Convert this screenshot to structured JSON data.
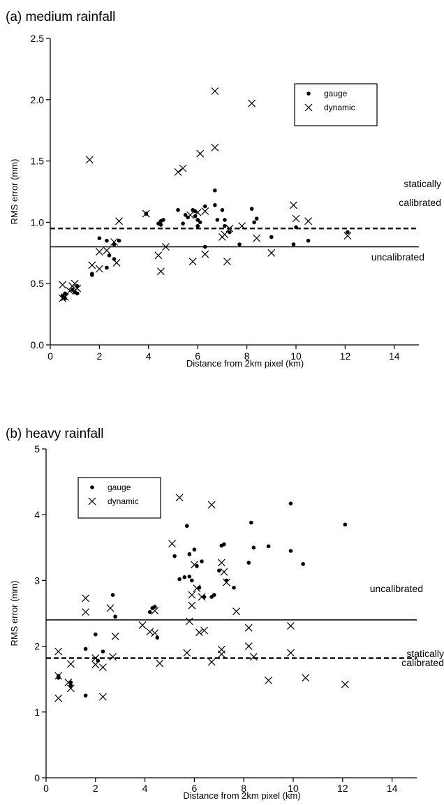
{
  "chart_data": [
    {
      "type": "scatter",
      "title": "(a) medium rainfall",
      "xlabel": "Distance from 2km pixel (km)",
      "ylabel": "RMS error (mm)",
      "xlim": [
        0,
        15
      ],
      "ylim": [
        0.0,
        2.5
      ],
      "xticks": [
        "0",
        "2",
        "4",
        "6",
        "8",
        "10",
        "12",
        "14"
      ],
      "yticks": [
        "0.0",
        "0.5",
        "1.0",
        "1.5",
        "2.0",
        "2.5"
      ],
      "grid": false,
      "legend_position": "top-right",
      "series": [
        {
          "name": "gauge",
          "marker": "dot",
          "points": [
            [
              0.5,
              0.4
            ],
            [
              0.6,
              0.38
            ],
            [
              0.6,
              0.42
            ],
            [
              0.9,
              0.45
            ],
            [
              1.0,
              0.43
            ],
            [
              1.1,
              0.48
            ],
            [
              1.1,
              0.42
            ],
            [
              1.7,
              0.58
            ],
            [
              1.7,
              0.57
            ],
            [
              2.0,
              0.87
            ],
            [
              2.3,
              0.85
            ],
            [
              2.3,
              0.63
            ],
            [
              2.4,
              0.73
            ],
            [
              2.6,
              0.7
            ],
            [
              2.6,
              0.82
            ],
            [
              2.8,
              0.85
            ],
            [
              3.9,
              1.07
            ],
            [
              4.4,
              0.99
            ],
            [
              4.5,
              0.98
            ],
            [
              4.5,
              1.01
            ],
            [
              4.6,
              1.02
            ],
            [
              5.2,
              1.1
            ],
            [
              5.4,
              0.99
            ],
            [
              5.5,
              1.06
            ],
            [
              5.6,
              1.04
            ],
            [
              5.8,
              1.1
            ],
            [
              5.9,
              1.05
            ],
            [
              5.9,
              1.09
            ],
            [
              6.0,
              1.02
            ],
            [
              6.1,
              1.0
            ],
            [
              6.0,
              0.97
            ],
            [
              6.3,
              1.13
            ],
            [
              6.3,
              0.8
            ],
            [
              6.7,
              1.26
            ],
            [
              6.7,
              1.14
            ],
            [
              6.8,
              1.02
            ],
            [
              7.0,
              1.1
            ],
            [
              7.1,
              1.02
            ],
            [
              7.1,
              0.97
            ],
            [
              7.3,
              0.92
            ],
            [
              7.7,
              0.82
            ],
            [
              8.2,
              1.11
            ],
            [
              8.3,
              1.0
            ],
            [
              8.4,
              1.03
            ],
            [
              9.0,
              0.88
            ],
            [
              9.9,
              0.82
            ],
            [
              10.0,
              0.96
            ],
            [
              10.5,
              0.85
            ],
            [
              12.1,
              0.92
            ]
          ]
        },
        {
          "name": "dynamic",
          "marker": "x",
          "points": [
            [
              0.5,
              0.49
            ],
            [
              0.5,
              0.38
            ],
            [
              0.6,
              0.39
            ],
            [
              0.8,
              0.44
            ],
            [
              0.9,
              0.48
            ],
            [
              1.0,
              0.5
            ],
            [
              1.1,
              0.46
            ],
            [
              1.6,
              1.51
            ],
            [
              1.7,
              0.65
            ],
            [
              2.0,
              0.62
            ],
            [
              2.0,
              0.76
            ],
            [
              2.3,
              0.77
            ],
            [
              2.6,
              0.84
            ],
            [
              2.7,
              0.67
            ],
            [
              2.8,
              1.01
            ],
            [
              3.9,
              1.07
            ],
            [
              4.4,
              0.73
            ],
            [
              4.5,
              0.6
            ],
            [
              4.7,
              0.8
            ],
            [
              5.2,
              1.41
            ],
            [
              5.4,
              1.44
            ],
            [
              5.7,
              1.06
            ],
            [
              5.8,
              0.68
            ],
            [
              6.0,
              1.08
            ],
            [
              6.1,
              1.56
            ],
            [
              6.3,
              0.74
            ],
            [
              6.3,
              1.09
            ],
            [
              6.7,
              2.07
            ],
            [
              6.7,
              1.61
            ],
            [
              7.0,
              0.88
            ],
            [
              7.1,
              0.9
            ],
            [
              7.2,
              0.68
            ],
            [
              7.3,
              0.95
            ],
            [
              7.8,
              0.97
            ],
            [
              8.2,
              1.97
            ],
            [
              8.4,
              0.87
            ],
            [
              9.0,
              0.75
            ],
            [
              9.9,
              1.14
            ],
            [
              10.0,
              1.03
            ],
            [
              10.5,
              1.01
            ],
            [
              12.1,
              0.89
            ]
          ]
        }
      ],
      "reference_lines": [
        {
          "value": 0.95,
          "style": "dashed",
          "label_lines": [
            "statically",
            "calibrated"
          ]
        },
        {
          "value": 0.8,
          "style": "solid",
          "label_lines": [
            "uncalibrated"
          ]
        }
      ]
    },
    {
      "type": "scatter",
      "title": "(b) heavy rainfall",
      "xlabel": "Distance from 2km pixel (km)",
      "ylabel": "RMS error (mm)",
      "xlim": [
        0,
        15
      ],
      "ylim": [
        0,
        5
      ],
      "xticks": [
        "0",
        "2",
        "4",
        "6",
        "8",
        "10",
        "12",
        "14"
      ],
      "yticks": [
        "0",
        "1",
        "2",
        "3",
        "4",
        "5"
      ],
      "grid": false,
      "legend_position": "top-left",
      "series": [
        {
          "name": "gauge",
          "marker": "dot",
          "points": [
            [
              0.5,
              1.52
            ],
            [
              0.5,
              1.55
            ],
            [
              1.0,
              1.4
            ],
            [
              1.0,
              1.45
            ],
            [
              1.6,
              1.96
            ],
            [
              1.6,
              1.25
            ],
            [
              2.0,
              2.18
            ],
            [
              2.1,
              1.78
            ],
            [
              2.3,
              1.92
            ],
            [
              2.7,
              2.78
            ],
            [
              2.8,
              2.45
            ],
            [
              4.2,
              2.52
            ],
            [
              4.3,
              2.58
            ],
            [
              4.4,
              2.6
            ],
            [
              4.5,
              2.13
            ],
            [
              5.2,
              3.37
            ],
            [
              5.4,
              3.02
            ],
            [
              5.6,
              3.05
            ],
            [
              5.7,
              3.83
            ],
            [
              5.8,
              3.06
            ],
            [
              5.8,
              3.4
            ],
            [
              5.9,
              3.0
            ],
            [
              6.0,
              3.47
            ],
            [
              6.1,
              3.22
            ],
            [
              6.2,
              2.89
            ],
            [
              6.3,
              3.29
            ],
            [
              6.4,
              2.75
            ],
            [
              6.7,
              2.75
            ],
            [
              6.8,
              2.78
            ],
            [
              7.0,
              3.15
            ],
            [
              7.1,
              3.53
            ],
            [
              7.2,
              3.55
            ],
            [
              7.3,
              3.0
            ],
            [
              7.6,
              2.89
            ],
            [
              8.2,
              3.27
            ],
            [
              8.3,
              3.88
            ],
            [
              8.4,
              3.5
            ],
            [
              9.0,
              3.52
            ],
            [
              9.9,
              3.45
            ],
            [
              9.9,
              4.17
            ],
            [
              10.4,
              3.25
            ],
            [
              12.1,
              3.85
            ]
          ]
        },
        {
          "name": "dynamic",
          "marker": "x",
          "points": [
            [
              0.5,
              1.92
            ],
            [
              0.5,
              1.55
            ],
            [
              0.5,
              1.21
            ],
            [
              0.9,
              1.45
            ],
            [
              1.0,
              1.36
            ],
            [
              1.0,
              1.73
            ],
            [
              1.6,
              2.73
            ],
            [
              1.6,
              2.52
            ],
            [
              2.0,
              1.82
            ],
            [
              2.0,
              1.72
            ],
            [
              2.3,
              1.68
            ],
            [
              2.3,
              1.23
            ],
            [
              2.6,
              2.58
            ],
            [
              2.7,
              1.84
            ],
            [
              2.8,
              2.15
            ],
            [
              3.9,
              2.32
            ],
            [
              4.2,
              2.22
            ],
            [
              4.4,
              2.54
            ],
            [
              4.4,
              2.2
            ],
            [
              4.6,
              1.74
            ],
            [
              5.1,
              3.56
            ],
            [
              5.4,
              4.26
            ],
            [
              5.7,
              1.9
            ],
            [
              5.8,
              2.38
            ],
            [
              5.9,
              2.62
            ],
            [
              5.9,
              2.78
            ],
            [
              6.0,
              3.24
            ],
            [
              6.1,
              2.88
            ],
            [
              6.2,
              2.21
            ],
            [
              6.3,
              2.75
            ],
            [
              6.4,
              2.24
            ],
            [
              6.7,
              4.15
            ],
            [
              6.7,
              1.76
            ],
            [
              7.1,
              3.27
            ],
            [
              7.1,
              1.95
            ],
            [
              7.1,
              1.88
            ],
            [
              7.2,
              3.13
            ],
            [
              7.3,
              2.97
            ],
            [
              7.7,
              2.53
            ],
            [
              8.2,
              2.28
            ],
            [
              8.2,
              2.0
            ],
            [
              8.4,
              1.84
            ],
            [
              9.0,
              1.48
            ],
            [
              9.9,
              2.31
            ],
            [
              9.9,
              1.9
            ],
            [
              10.5,
              1.52
            ],
            [
              12.1,
              1.42
            ]
          ]
        }
      ],
      "reference_lines": [
        {
          "value": 2.4,
          "style": "solid",
          "label_lines": [
            "uncalibrated"
          ]
        },
        {
          "value": 1.82,
          "style": "dashed",
          "label_lines": [
            "statically",
            "calibrated"
          ]
        }
      ]
    }
  ]
}
